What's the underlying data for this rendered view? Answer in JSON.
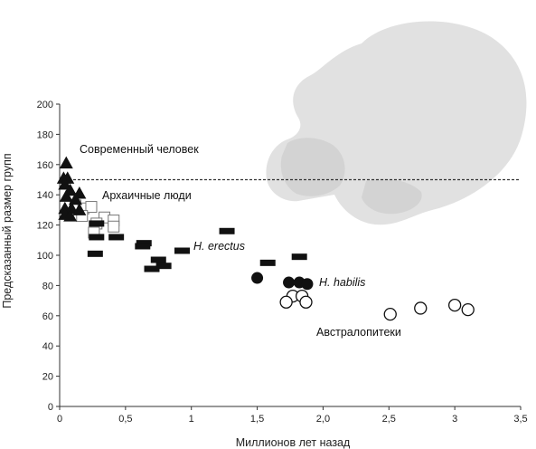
{
  "chart_data": {
    "type": "scatter",
    "xlabel": "Миллионов лет назад",
    "ylabel": "Предсказанный размер групп",
    "xlim": [
      0,
      3.5
    ],
    "ylim": [
      0,
      200
    ],
    "x_ticks": [
      "0",
      "0,5",
      "1",
      "1,5",
      "2,0",
      "2,5",
      "3",
      "3,5"
    ],
    "x_tick_values": [
      0,
      0.5,
      1,
      1.5,
      2.0,
      2.5,
      3,
      3.5
    ],
    "y_ticks": [
      "0",
      "20",
      "40",
      "60",
      "80",
      "100",
      "120",
      "140",
      "160",
      "180",
      "200"
    ],
    "y_tick_values": [
      0,
      20,
      40,
      60,
      80,
      100,
      120,
      140,
      160,
      180,
      200
    ],
    "reference_line": {
      "y": 150,
      "style": "dashed"
    },
    "background_image": "skull-silhouette",
    "series": [
      {
        "marker": "filled-triangle",
        "points": [
          {
            "x": 0.05,
            "y": 161
          },
          {
            "x": 0.03,
            "y": 151
          },
          {
            "x": 0.06,
            "y": 151
          },
          {
            "x": 0.04,
            "y": 147
          },
          {
            "x": 0.08,
            "y": 143
          },
          {
            "x": 0.15,
            "y": 141
          },
          {
            "x": 0.05,
            "y": 139
          },
          {
            "x": 0.12,
            "y": 137
          },
          {
            "x": 0.04,
            "y": 131
          },
          {
            "x": 0.09,
            "y": 131
          },
          {
            "x": 0.15,
            "y": 130
          },
          {
            "x": 0.04,
            "y": 127
          },
          {
            "x": 0.08,
            "y": 126
          }
        ]
      },
      {
        "marker": "open-square",
        "points": [
          {
            "x": 0.12,
            "y": 133
          },
          {
            "x": 0.18,
            "y": 131
          },
          {
            "x": 0.24,
            "y": 132
          },
          {
            "x": 0.17,
            "y": 126
          },
          {
            "x": 0.34,
            "y": 125
          },
          {
            "x": 0.41,
            "y": 123
          },
          {
            "x": 0.28,
            "y": 121
          },
          {
            "x": 0.41,
            "y": 119
          },
          {
            "x": 0.26,
            "y": 115
          }
        ]
      },
      {
        "marker": "filled-rectangle",
        "points": [
          {
            "x": 0.28,
            "y": 121
          },
          {
            "x": 0.28,
            "y": 112
          },
          {
            "x": 0.43,
            "y": 112
          },
          {
            "x": 0.27,
            "y": 101
          },
          {
            "x": 0.64,
            "y": 108
          },
          {
            "x": 0.63,
            "y": 106
          },
          {
            "x": 0.93,
            "y": 103
          },
          {
            "x": 1.27,
            "y": 116
          },
          {
            "x": 1.82,
            "y": 99
          },
          {
            "x": 1.58,
            "y": 95
          },
          {
            "x": 0.75,
            "y": 97
          },
          {
            "x": 0.79,
            "y": 93
          },
          {
            "x": 0.7,
            "y": 91
          }
        ]
      },
      {
        "marker": "filled-circle",
        "points": [
          {
            "x": 1.5,
            "y": 85
          },
          {
            "x": 1.74,
            "y": 82
          },
          {
            "x": 1.82,
            "y": 82
          },
          {
            "x": 1.88,
            "y": 81
          }
        ]
      },
      {
        "marker": "open-circle",
        "points": [
          {
            "x": 1.77,
            "y": 73
          },
          {
            "x": 1.84,
            "y": 73
          },
          {
            "x": 1.72,
            "y": 69
          },
          {
            "x": 1.87,
            "y": 69
          },
          {
            "x": 2.51,
            "y": 61
          },
          {
            "x": 2.74,
            "y": 65
          },
          {
            "x": 3.0,
            "y": 67
          },
          {
            "x": 3.1,
            "y": 64
          }
        ]
      }
    ],
    "annotations": [
      {
        "text": "Современный человек",
        "style": "normal"
      },
      {
        "text": "Архаичные люди",
        "style": "normal"
      },
      {
        "text": "H. erectus",
        "style": "italic"
      },
      {
        "text": "H. habilis",
        "style": "italic"
      },
      {
        "text": "Австралопитеки",
        "style": "normal"
      }
    ]
  }
}
